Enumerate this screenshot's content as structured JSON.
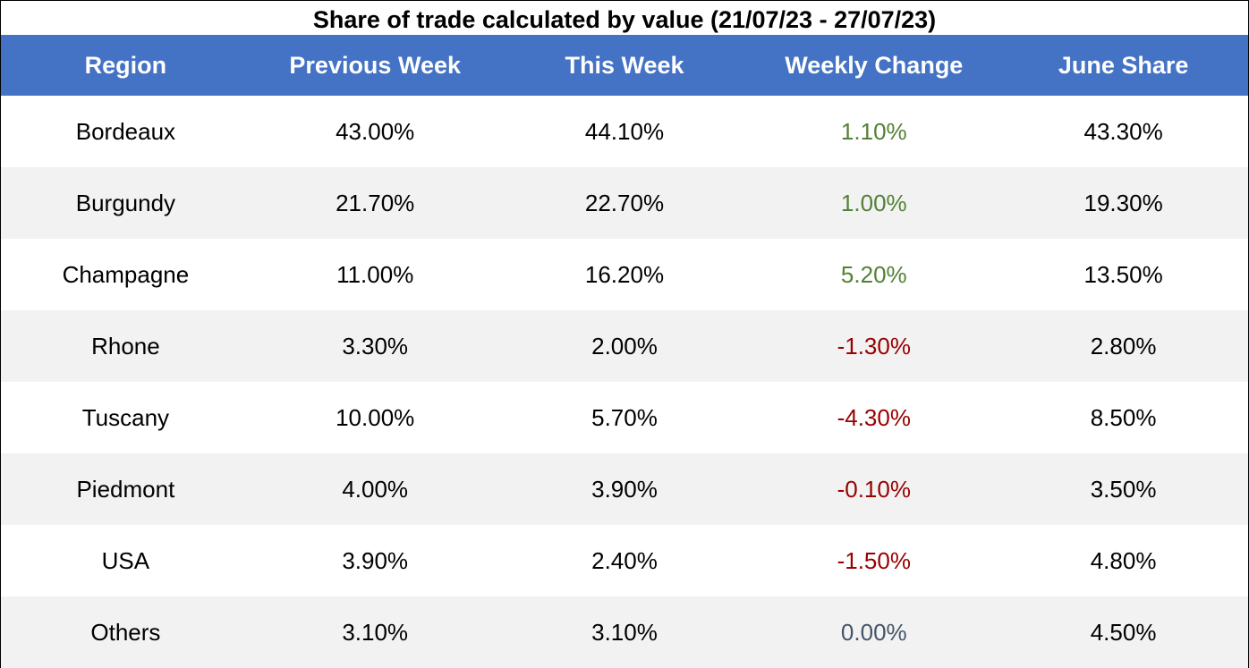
{
  "colors": {
    "header_bg": "#4472c4",
    "header_text": "#ffffff",
    "row_alt_bg": "#f2f2f2",
    "positive": "#538135",
    "negative": "#990000",
    "zero": "#44546a"
  },
  "chart_data": {
    "type": "table",
    "title": "Share of trade calculated by value (21/07/23 - 27/07/23)",
    "columns": [
      "Region",
      "Previous Week",
      "This Week",
      "Weekly Change",
      "June Share"
    ],
    "rows": [
      {
        "region": "Bordeaux",
        "previous_week": "43.00%",
        "this_week": "44.10%",
        "weekly_change": "1.10%",
        "june_share": "43.30%",
        "trend": "pos"
      },
      {
        "region": "Burgundy",
        "previous_week": "21.70%",
        "this_week": "22.70%",
        "weekly_change": "1.00%",
        "june_share": "19.30%",
        "trend": "pos"
      },
      {
        "region": "Champagne",
        "previous_week": "11.00%",
        "this_week": "16.20%",
        "weekly_change": "5.20%",
        "june_share": "13.50%",
        "trend": "pos"
      },
      {
        "region": "Rhone",
        "previous_week": "3.30%",
        "this_week": "2.00%",
        "weekly_change": "-1.30%",
        "june_share": "2.80%",
        "trend": "neg"
      },
      {
        "region": "Tuscany",
        "previous_week": "10.00%",
        "this_week": "5.70%",
        "weekly_change": "-4.30%",
        "june_share": "8.50%",
        "trend": "neg"
      },
      {
        "region": "Piedmont",
        "previous_week": "4.00%",
        "this_week": "3.90%",
        "weekly_change": "-0.10%",
        "june_share": "3.50%",
        "trend": "neg"
      },
      {
        "region": "USA",
        "previous_week": "3.90%",
        "this_week": "2.40%",
        "weekly_change": "-1.50%",
        "june_share": "4.80%",
        "trend": "neg"
      },
      {
        "region": "Others",
        "previous_week": "3.10%",
        "this_week": "3.10%",
        "weekly_change": "0.00%",
        "june_share": "4.50%",
        "trend": "zero"
      }
    ]
  }
}
